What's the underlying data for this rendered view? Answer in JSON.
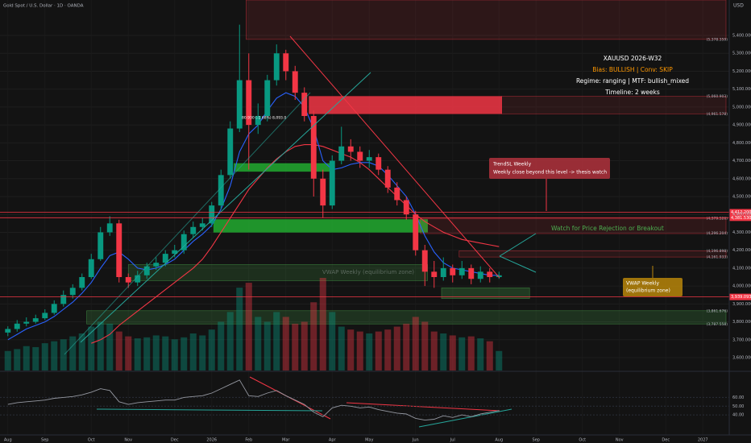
{
  "chart_data": {
    "type": "candlestick",
    "title": "Gold Spot / U.S. Dollar · 1D · OANDA",
    "currency": "USD",
    "categories": [
      "Aug",
      null,
      null,
      null,
      "Sep",
      null,
      null,
      null,
      null,
      "Oct",
      null,
      null,
      null,
      "Nov",
      null,
      null,
      null,
      null,
      "Dec",
      null,
      null,
      null,
      "2026",
      null,
      null,
      null,
      "Feb",
      null,
      null,
      null,
      "Mar",
      null,
      null,
      null,
      null,
      "Apr",
      null,
      null,
      null,
      "May",
      null,
      null,
      null,
      null,
      "Jun",
      null,
      null,
      null,
      "Jul",
      null,
      null,
      null,
      null,
      "Aug",
      null,
      null,
      null,
      "Sep",
      null,
      null,
      null,
      null,
      "Oct",
      null,
      null,
      null,
      "Nov",
      null,
      null,
      null,
      null,
      "Dec",
      null,
      null,
      null,
      "2027",
      null,
      null
    ],
    "open": [
      3740,
      3760,
      3790,
      3800,
      3820,
      3850,
      3900,
      3950,
      3990,
      4050,
      4150,
      4300,
      4350,
      4050,
      4020,
      4060,
      4110,
      4130,
      4180,
      4200,
      4290,
      4330,
      4350,
      4450,
      4620,
      4880,
      5150,
      4900,
      4950,
      5150,
      5300,
      5200,
      5080,
      4950,
      4600,
      4450,
      4700,
      4780,
      4750,
      4700,
      4720,
      4650,
      4550,
      4480,
      4400,
      4200,
      4080,
      4050,
      4100,
      4060,
      4100,
      4040,
      4080,
      4050,
      null,
      null,
      null,
      null,
      null,
      null,
      null,
      null,
      null,
      null,
      null,
      null,
      null,
      null,
      null,
      null,
      null,
      null,
      null,
      null,
      null,
      null,
      null,
      null
    ],
    "high": [
      3775,
      3810,
      3825,
      3840,
      3870,
      3920,
      3975,
      4010,
      4070,
      4180,
      4330,
      4390,
      4370,
      4070,
      4085,
      4130,
      4160,
      4200,
      4230,
      4310,
      4360,
      4380,
      4470,
      4650,
      4920,
      5460,
      5300,
      5020,
      5180,
      5350,
      5320,
      5230,
      5110,
      4980,
      4650,
      4730,
      4890,
      4820,
      4780,
      4760,
      4740,
      4670,
      4580,
      4500,
      4420,
      4230,
      4140,
      4160,
      4120,
      4140,
      4120,
      4110,
      4100,
      4080,
      null,
      null,
      null,
      null,
      null,
      null,
      null,
      null,
      null,
      null,
      null,
      null,
      null,
      null,
      null,
      null,
      null,
      null,
      null,
      null,
      null,
      null,
      null,
      null
    ],
    "low": [
      3720,
      3745,
      3775,
      3790,
      3810,
      3840,
      3885,
      3930,
      3975,
      4040,
      4140,
      4280,
      4020,
      3990,
      4000,
      4040,
      4090,
      4110,
      4160,
      4180,
      4270,
      4310,
      4330,
      4430,
      4600,
      4860,
      4650,
      4850,
      4920,
      5120,
      5150,
      5040,
      4920,
      4500,
      4380,
      4430,
      4680,
      4700,
      4660,
      4660,
      4620,
      4520,
      4450,
      4370,
      4170,
      4000,
      3990,
      4030,
      4020,
      4040,
      4010,
      4020,
      4020,
      4040,
      null,
      null,
      null,
      null,
      null,
      null,
      null,
      null,
      null,
      null,
      null,
      null,
      null,
      null,
      null,
      null,
      null,
      null,
      null,
      null,
      null,
      null,
      null,
      null
    ],
    "close": [
      3760,
      3790,
      3800,
      3820,
      3850,
      3900,
      3950,
      3990,
      4050,
      4150,
      4300,
      4350,
      4050,
      4020,
      4060,
      4110,
      4130,
      4180,
      4200,
      4290,
      4330,
      4350,
      4450,
      4620,
      4880,
      5150,
      4900,
      4950,
      5150,
      5300,
      5200,
      5080,
      4950,
      4600,
      4450,
      4700,
      4780,
      4750,
      4700,
      4720,
      4650,
      4550,
      4480,
      4400,
      4200,
      4080,
      4050,
      4100,
      4060,
      4100,
      4040,
      4080,
      4050,
      4060,
      null,
      null,
      null,
      null,
      null,
      null,
      null,
      null,
      null,
      null,
      null,
      null,
      null,
      null,
      null,
      null,
      null,
      null,
      null,
      null,
      null,
      null,
      null,
      null
    ],
    "volume": [
      20,
      22,
      25,
      24,
      28,
      30,
      32,
      35,
      38,
      45,
      50,
      48,
      40,
      35,
      33,
      34,
      36,
      35,
      32,
      34,
      38,
      36,
      42,
      50,
      60,
      85,
      90,
      55,
      50,
      60,
      55,
      48,
      50,
      70,
      95,
      60,
      45,
      42,
      40,
      38,
      40,
      42,
      45,
      48,
      55,
      50,
      40,
      38,
      36,
      34,
      35,
      33,
      30,
      20,
      null,
      null,
      null,
      null,
      null,
      null,
      null,
      null,
      null,
      null,
      null,
      null,
      null,
      null,
      null,
      null,
      null,
      null,
      null,
      null,
      null,
      null,
      null,
      null
    ],
    "up_color": "#089981",
    "down_color": "#f23645",
    "ylim": [
      3528,
      5598
    ],
    "yticks": [
      {
        "value": 3600,
        "label": "3,600.000"
      },
      {
        "value": 3700,
        "label": "3,700.000"
      },
      {
        "value": 3800,
        "label": "3,800.000"
      },
      {
        "value": 3900,
        "label": "3,900.000"
      },
      {
        "value": 4000,
        "label": "4,000.000"
      },
      {
        "value": 4100,
        "label": "4,100.000"
      },
      {
        "value": 4200,
        "label": "4,200.000"
      },
      {
        "value": 4300,
        "label": "4,300.000"
      },
      {
        "value": 4400,
        "label": "4,400.000"
      },
      {
        "value": 4500,
        "label": "4,500.000"
      },
      {
        "value": 4600,
        "label": "4,600.000"
      },
      {
        "value": 4700,
        "label": "4,700.000"
      },
      {
        "value": 4800,
        "label": "4,800.000"
      },
      {
        "value": 4900,
        "label": "4,900.000"
      },
      {
        "value": 5000,
        "label": "5,000.000"
      },
      {
        "value": 5100,
        "label": "5,100.000"
      },
      {
        "value": 5200,
        "label": "5,200.000"
      },
      {
        "value": 5300,
        "label": "5,300.000"
      },
      {
        "value": 5400,
        "label": "5,400.000"
      }
    ],
    "overlays": [
      {
        "color": "#f23645",
        "values": [
          null,
          null,
          null,
          null,
          null,
          null,
          null,
          null,
          null,
          3680,
          3700,
          3730,
          3780,
          3820,
          3860,
          3900,
          3940,
          3980,
          4020,
          4060,
          4100,
          4150,
          4220,
          4300,
          4380,
          4460,
          4540,
          4600,
          4660,
          4710,
          4750,
          4780,
          4790,
          4790,
          4780,
          4760,
          4740,
          4720,
          4690,
          4650,
          4600,
          4550,
          4500,
          4450,
          4400,
          4360,
          4330,
          4300,
          4280,
          4260,
          4250,
          4240,
          4230,
          4220,
          null,
          null,
          null,
          null,
          null,
          null,
          null,
          null,
          null,
          null,
          null,
          null,
          null,
          null,
          null,
          null,
          null,
          null,
          null,
          null,
          null,
          null,
          null,
          null
        ]
      },
      {
        "color": "#2962ff",
        "values": [
          3700,
          3730,
          3760,
          3780,
          3800,
          3830,
          3870,
          3910,
          3960,
          4020,
          4100,
          4170,
          4190,
          4150,
          4100,
          4090,
          4100,
          4120,
          4150,
          4200,
          4250,
          4290,
          4340,
          4430,
          4560,
          4750,
          4850,
          4900,
          4980,
          5050,
          5080,
          5060,
          5000,
          4880,
          4700,
          4650,
          4660,
          4680,
          4690,
          4690,
          4670,
          4620,
          4560,
          4500,
          4400,
          4280,
          4190,
          4130,
          4100,
          4090,
          4080,
          4070,
          4060,
          4060,
          null,
          null,
          null,
          null,
          null,
          null,
          null,
          null,
          null,
          null,
          null,
          null,
          null,
          null,
          null,
          null,
          null,
          null,
          null,
          null,
          null,
          null,
          null,
          null
        ]
      }
    ],
    "zones": [
      {
        "top": 5598,
        "bottom": 5378,
        "start": 26.2,
        "end": 78,
        "color": "#f23645",
        "opacity": 0.12
      },
      {
        "top": 5060,
        "bottom": 4962,
        "start": 33,
        "end": 53.8,
        "color": "#f23645",
        "opacity": 0.85
      },
      {
        "top": 5060,
        "bottom": 4962,
        "start": 53.8,
        "end": 78,
        "color": "#f23645",
        "opacity": 0.1
      },
      {
        "top": 4685,
        "bottom": 4640,
        "start": 24.9,
        "end": 35.3,
        "color": "#22ab30",
        "opacity": 0.85
      },
      {
        "top": 4372,
        "bottom": 4300,
        "start": 22.7,
        "end": 45.8,
        "color": "#22ab30",
        "opacity": 0.85
      },
      {
        "top": 4375,
        "bottom": 4293,
        "start": 45,
        "end": 78,
        "color": "#f23645",
        "opacity": 0.12
      },
      {
        "top": 4120,
        "bottom": 4030,
        "start": 13.5,
        "end": 45.8,
        "color": "#4caf50",
        "opacity": 0.18
      },
      {
        "top": 4197,
        "bottom": 4162,
        "start": 49.2,
        "end": 78,
        "color": "#f23645",
        "opacity": 0.1
      },
      {
        "top": 3990,
        "bottom": 3930,
        "start": 47.3,
        "end": 56.8,
        "color": "#4caf50",
        "opacity": 0.25
      },
      {
        "top": 3862,
        "bottom": 3788,
        "start": 9,
        "end": 78,
        "color": "#4caf50",
        "opacity": 0.2
      }
    ],
    "levels": [
      {
        "value": 5378.359,
        "label": "(5,378.359)"
      },
      {
        "value": 5060.903,
        "label": "(5,060.903)"
      },
      {
        "value": 4961.578,
        "label": "(4,961.578)"
      },
      {
        "value": 4379.526,
        "label": "(4,379.526)"
      },
      {
        "value": 4296.204,
        "label": "(4,296.204)"
      },
      {
        "value": 4196.898,
        "label": "(4,196.898)"
      },
      {
        "value": 4161.933,
        "label": "(4,161.933)"
      },
      {
        "value": 3861.676,
        "label": "(3,861.676)"
      },
      {
        "value": 3787.558,
        "label": "(3,787.558)"
      }
    ],
    "price_tags": [
      {
        "value": 4412.2,
        "label": "4,412.200",
        "color": "#f23645"
      },
      {
        "value": 4381.53,
        "label": "4,381.530",
        "color": "#f23645"
      },
      {
        "value": 3939.093,
        "label": "3,939.093",
        "color": "#f23645"
      }
    ],
    "rsi": {
      "color": "#9598a1",
      "values": [
        52,
        54,
        55,
        56,
        57,
        59,
        60,
        61,
        63,
        66,
        70,
        68,
        55,
        52,
        54,
        55,
        56,
        57,
        57,
        60,
        61,
        62,
        65,
        70,
        75,
        80,
        62,
        61,
        65,
        68,
        62,
        57,
        52,
        43,
        38,
        48,
        51,
        50,
        48,
        49,
        46,
        44,
        42,
        41,
        36,
        34,
        35,
        39,
        37,
        40,
        38,
        41,
        43,
        45,
        null,
        null,
        null,
        null,
        null,
        null,
        null,
        null,
        null,
        null,
        null,
        null,
        null,
        null,
        null,
        null,
        null,
        null,
        null,
        null,
        null,
        null,
        null,
        null
      ],
      "ylim": [
        17,
        89
      ],
      "yticks": [
        {
          "value": 60,
          "label": "60.00"
        },
        {
          "value": 50,
          "label": "50.00"
        },
        {
          "value": 40,
          "label": "40.00"
        }
      ]
    },
    "annotations": {
      "info": [
        "XAUUSD 2026-W32",
        "Bias: BULLISH | Conv: SKIP",
        "Regime: ranging | MTF: bullish_mixed",
        "Timeline: 2 weeks"
      ],
      "trend_callout": [
        "TrendSL Weekly",
        "Weekly close beyond this level -> thesis watch"
      ],
      "watch": "Watch for Price Rejection or Breakout",
      "vwap_zone": "VWAP Weekly (equilibrium zone)",
      "vwap_box": [
        "VWAP Weekly",
        "(equilibrium zone)"
      ],
      "candle_info": "80.930 (-1.68%) 8,093.0"
    }
  }
}
